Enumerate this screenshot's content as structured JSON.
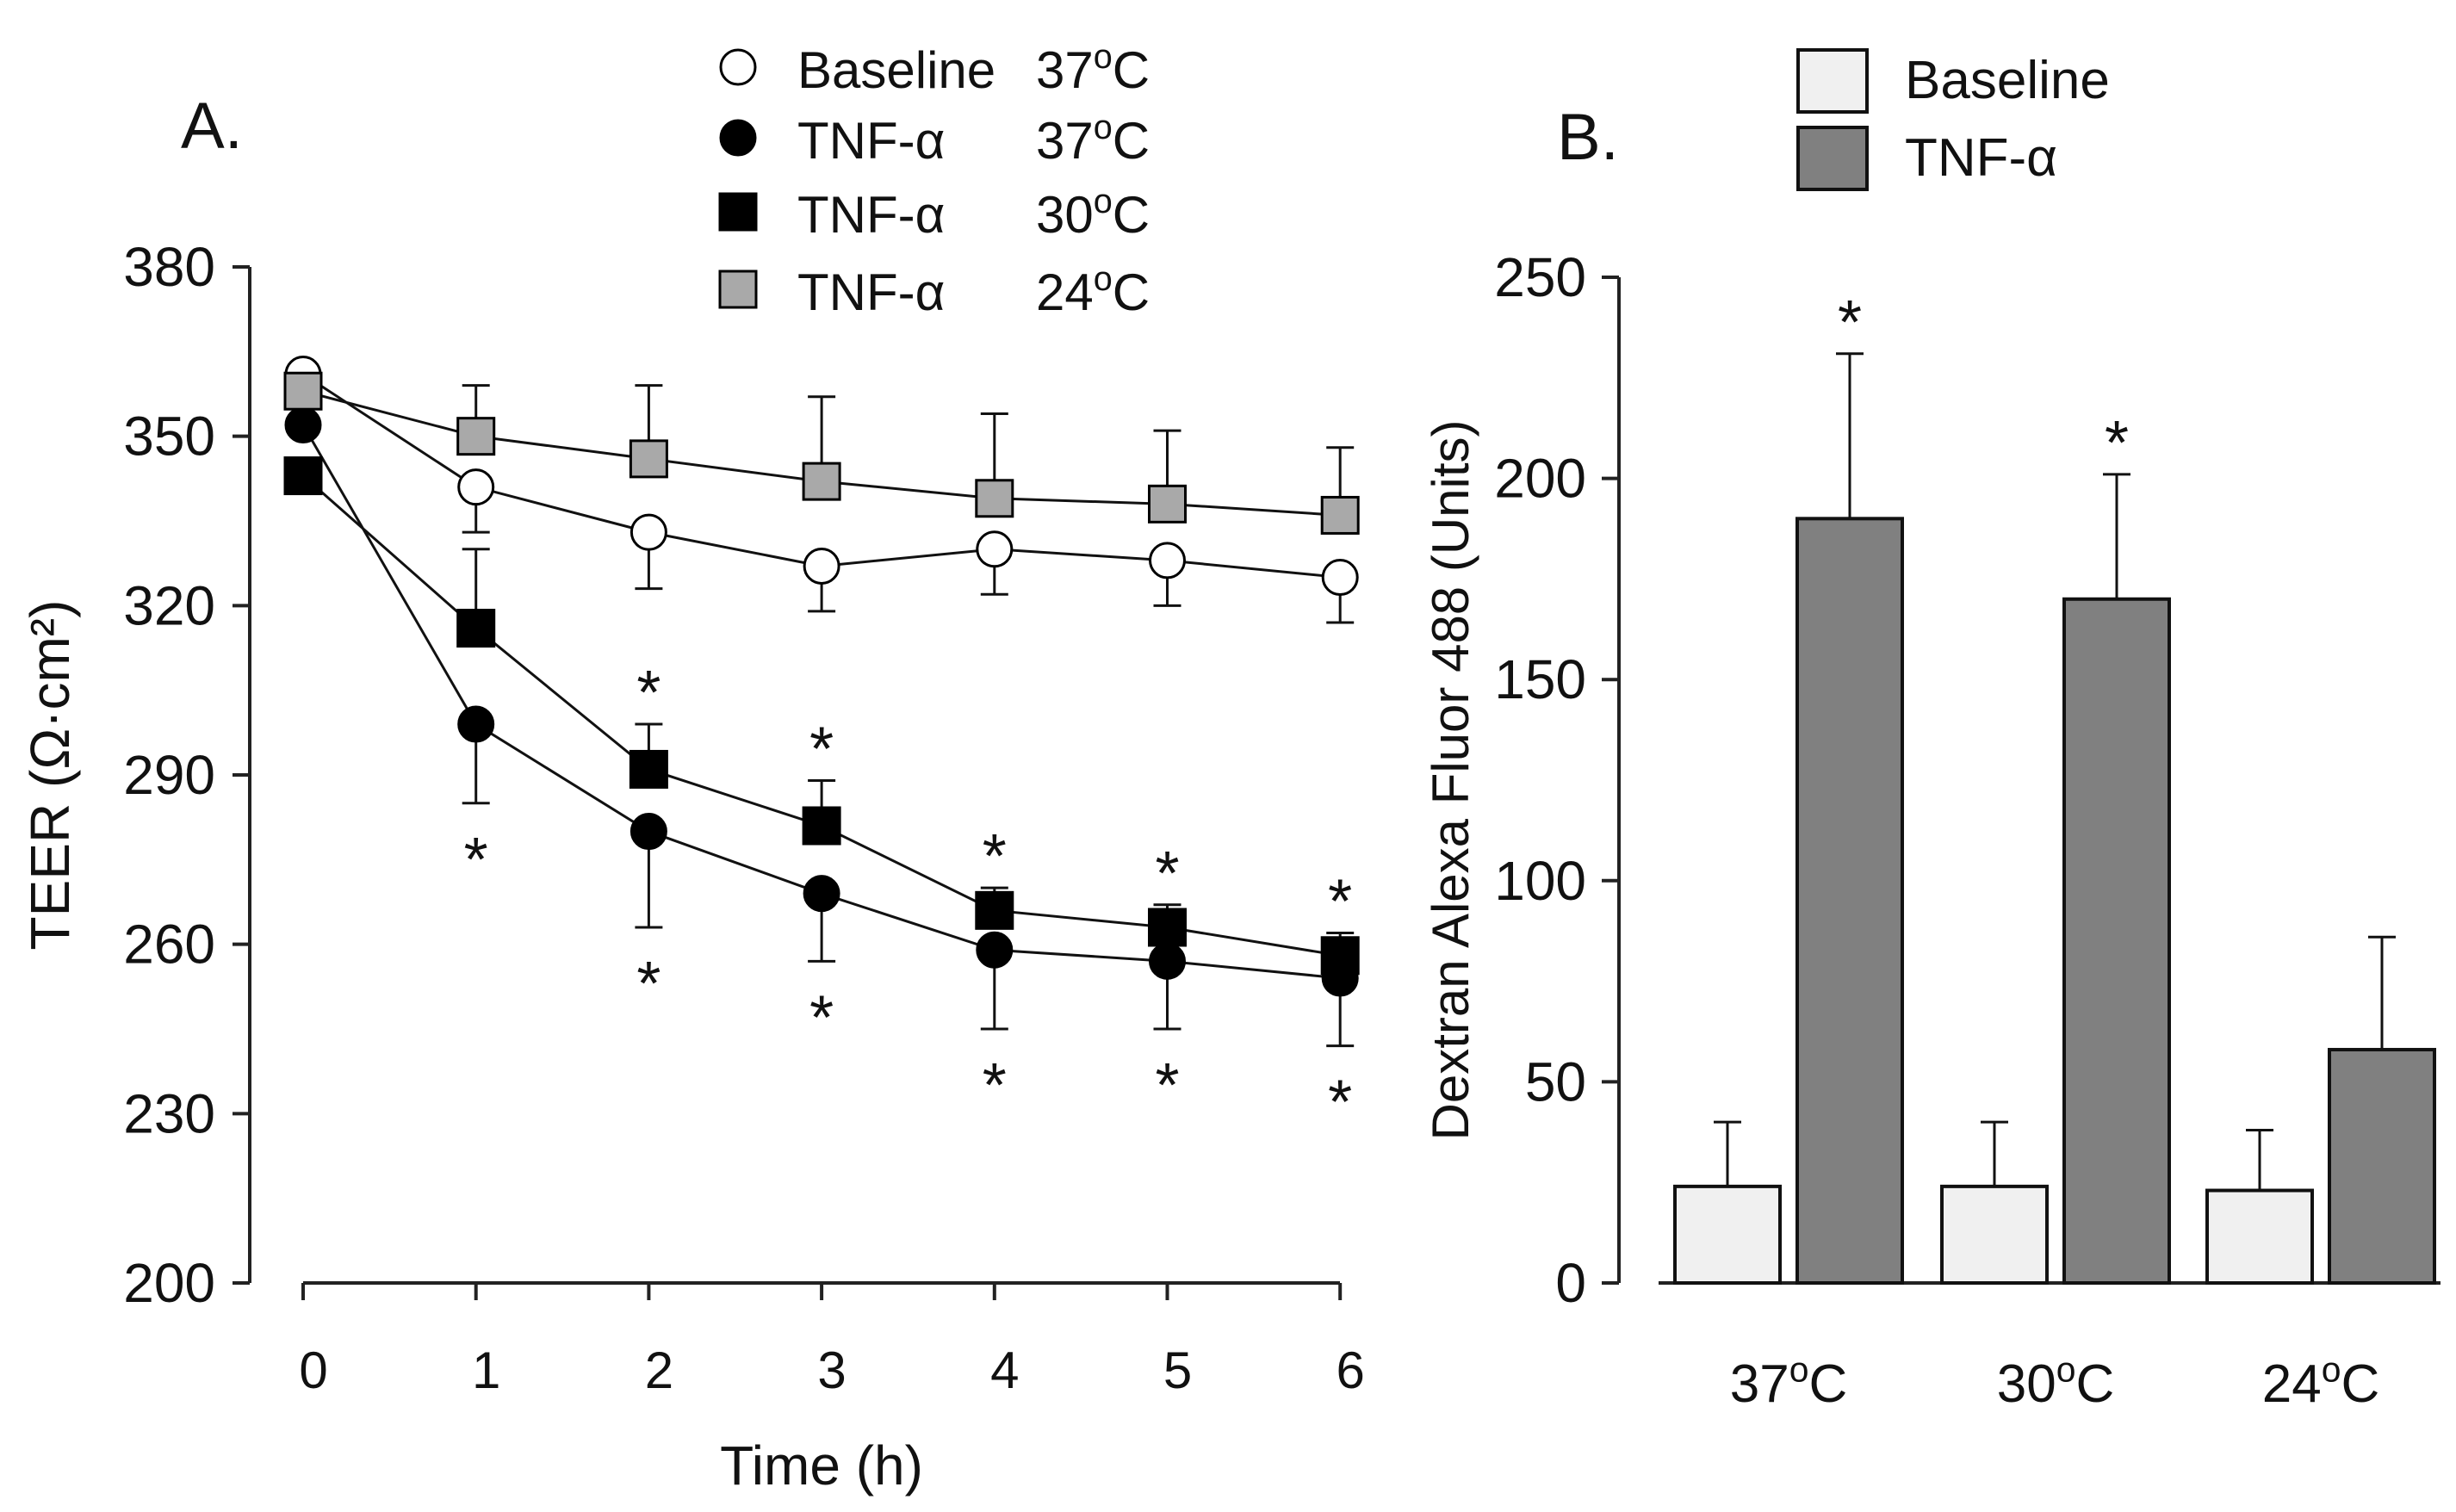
{
  "panels": {
    "a_label": "A.",
    "b_label": "B."
  },
  "chart_data": [
    {
      "type": "line",
      "panel": "A.",
      "xlabel": "Time (h)",
      "ylabel": "TEER (Ω·cm²)",
      "x": [
        0,
        1,
        2,
        3,
        4,
        5,
        6
      ],
      "xticks": [
        "0",
        "1",
        "2",
        "3",
        "4",
        "5",
        "6"
      ],
      "ylim": [
        200,
        380
      ],
      "yticks": [
        "200",
        "230",
        "260",
        "290",
        "320",
        "350",
        "380"
      ],
      "legend_position": "top",
      "series": [
        {
          "name": "Baseline",
          "temp": "37",
          "marker": "circle",
          "fill": "#ffffff",
          "values": [
            361,
            341,
            333,
            327,
            330,
            328,
            325
          ],
          "err": [
            null,
            8,
            10,
            8,
            8,
            8,
            8
          ],
          "err_dir": "down",
          "stars": []
        },
        {
          "name": "TNF-α",
          "temp": "37",
          "marker": "circle",
          "fill": "#000000",
          "values": [
            352,
            299,
            280,
            269,
            259,
            257,
            254
          ],
          "err": [
            null,
            14,
            17,
            12,
            14,
            12,
            12
          ],
          "err_dir": "down",
          "stars": [
            1,
            2,
            3,
            4,
            5,
            6
          ]
        },
        {
          "name": "TNF-α",
          "temp": "30",
          "marker": "square",
          "fill": "#000000",
          "values": [
            343,
            316,
            291,
            281,
            266,
            263,
            258
          ],
          "err": [
            null,
            14,
            8,
            8,
            4,
            4,
            4
          ],
          "err_dir": "up",
          "stars": [
            2,
            3,
            4,
            5,
            6
          ]
        },
        {
          "name": "TNF-α",
          "temp": "24",
          "marker": "square",
          "fill": "#a9a9a9",
          "values": [
            358,
            350,
            346,
            342,
            339,
            338,
            336
          ],
          "err": [
            null,
            9,
            13,
            15,
            15,
            13,
            12
          ],
          "err_dir": "up",
          "stars": []
        }
      ],
      "star": "*",
      "degree_unit": "C"
    },
    {
      "type": "bar",
      "panel": "B.",
      "ylabel": "Dextran Alexa Fluor 488 (Units)",
      "categories": [
        "37",
        "30",
        "24"
      ],
      "category_unit": "C",
      "ylim": [
        0,
        250
      ],
      "yticks": [
        "0",
        "50",
        "100",
        "150",
        "200",
        "250"
      ],
      "legend_position": "top",
      "series": [
        {
          "name": "Baseline",
          "color": "#f0f0f0",
          "values": [
            24,
            24,
            23
          ],
          "err": [
            16,
            16,
            15
          ]
        },
        {
          "name": "TNF-α",
          "color": "#808080",
          "values": [
            190,
            170,
            58
          ],
          "err": [
            41,
            31,
            28
          ]
        }
      ],
      "stars": [
        "*",
        "*",
        ""
      ]
    }
  ]
}
